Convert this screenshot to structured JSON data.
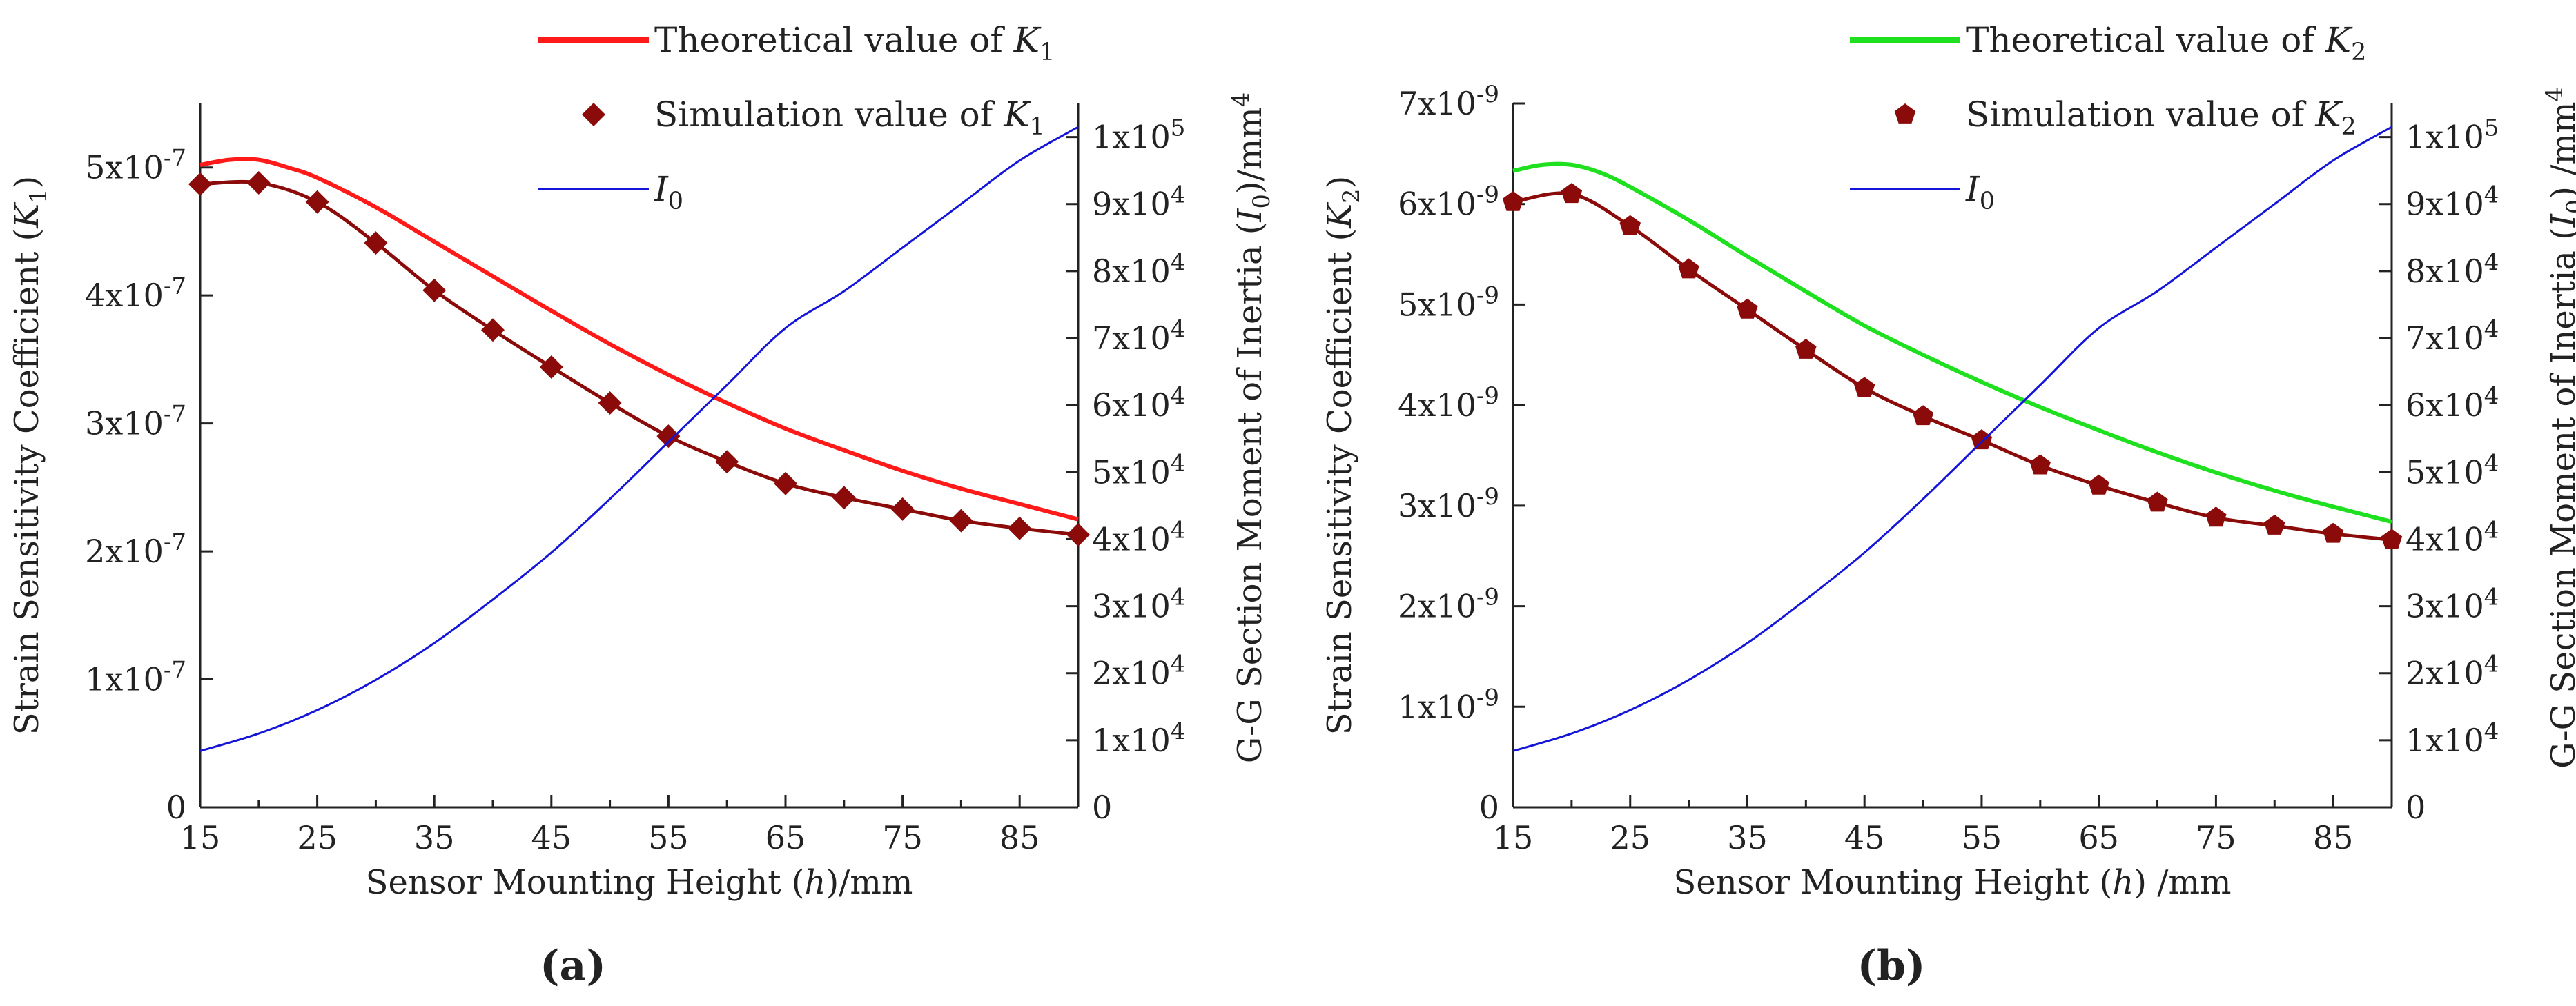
{
  "figure": {
    "panel_labels": [
      "(a)",
      "(b)"
    ]
  },
  "chart_data": [
    {
      "type": "line",
      "panel": "(a)",
      "xlabel": "Sensor Mounting Height (h)/mm",
      "ylabel": "Strain Sensitivity Coefficient (K1)",
      "ylabel_right": "G-G Section Moment of Inertia (I0)/mm4",
      "xlim": [
        15,
        90
      ],
      "ylim": [
        0,
        5.5e-07
      ],
      "ylim_right": [
        0,
        105000
      ],
      "x_ticks": [
        15,
        25,
        35,
        45,
        55,
        65,
        75,
        85
      ],
      "x_tick_labels": [
        "15",
        "25",
        "35",
        "45",
        "55",
        "65",
        "75",
        "85"
      ],
      "y_ticks": [
        0,
        1e-07,
        2e-07,
        3e-07,
        4e-07,
        5e-07
      ],
      "y_tick_labels": [
        "0",
        "1x10-7",
        "2x10-7",
        "3x10-7",
        "4x10-7",
        "5x10-7"
      ],
      "y_right_ticks": [
        0,
        10000,
        20000,
        30000,
        40000,
        50000,
        60000,
        70000,
        80000,
        90000,
        100000
      ],
      "y_right_tick_labels": [
        "0",
        "1x104",
        "2x104",
        "3x104",
        "4x104",
        "5x104",
        "6x104",
        "7x104",
        "8x104",
        "9x104",
        "1x105"
      ],
      "legend_position": "top-right",
      "series": [
        {
          "name": "Theoretical value of K1",
          "axis": "left",
          "style": "line",
          "color": "#ff1a1a",
          "x": [
            15,
            17.5,
            20,
            22.5,
            25,
            30,
            35,
            40,
            45,
            50,
            55,
            60,
            65,
            70,
            75,
            80,
            85,
            90
          ],
          "y": [
            5.02e-07,
            5.06e-07,
            5.06e-07,
            5e-07,
            4.92e-07,
            4.69e-07,
            4.42e-07,
            4.15e-07,
            3.88e-07,
            3.62e-07,
            3.38e-07,
            3.16e-07,
            2.96e-07,
            2.79e-07,
            2.63e-07,
            2.49e-07,
            2.37e-07,
            2.25e-07
          ]
        },
        {
          "name": "Simulation value of K1",
          "axis": "left",
          "style": "line+diamond",
          "color": "#8b0a0a",
          "x": [
            15,
            20,
            25,
            30,
            35,
            40,
            45,
            50,
            55,
            60,
            65,
            70,
            75,
            80,
            85,
            90
          ],
          "y": [
            4.87e-07,
            4.88e-07,
            4.73e-07,
            4.41e-07,
            4.04e-07,
            3.73e-07,
            3.44e-07,
            3.16e-07,
            2.9e-07,
            2.7e-07,
            2.53e-07,
            2.42e-07,
            2.33e-07,
            2.24e-07,
            2.18e-07,
            2.13e-07
          ]
        },
        {
          "name": "I0",
          "axis": "right",
          "style": "thin-line",
          "color": "#1515d8",
          "x": [
            15,
            20,
            25,
            30,
            35,
            40,
            45,
            50,
            55,
            60,
            65,
            70,
            75,
            80,
            85,
            90
          ],
          "y": [
            8400,
            11000,
            14500,
            19000,
            24500,
            31000,
            38000,
            46000,
            54500,
            63000,
            71500,
            77000,
            83500,
            90000,
            96500,
            101500
          ]
        }
      ]
    },
    {
      "type": "line",
      "panel": "(b)",
      "xlabel": "Sensor Mounting Height (h) /mm",
      "ylabel": "Strain Sensitivity Coefficient (K2)",
      "ylabel_right": "G-G Section Moment of Inertia (I0) /mm4",
      "xlim": [
        15,
        90
      ],
      "ylim": [
        0,
        7e-09
      ],
      "ylim_right": [
        0,
        105000
      ],
      "x_ticks": [
        15,
        25,
        35,
        45,
        55,
        65,
        75,
        85
      ],
      "x_tick_labels": [
        "15",
        "25",
        "35",
        "45",
        "55",
        "65",
        "75",
        "85"
      ],
      "y_ticks": [
        0,
        1e-09,
        2e-09,
        3e-09,
        4e-09,
        5e-09,
        6e-09,
        7e-09
      ],
      "y_tick_labels": [
        "0",
        "1x10-9",
        "2x10-9",
        "3x10-9",
        "4x10-9",
        "5x10-9",
        "6x10-9",
        "7x10-9"
      ],
      "y_right_ticks": [
        0,
        10000,
        20000,
        30000,
        40000,
        50000,
        60000,
        70000,
        80000,
        90000,
        100000
      ],
      "y_right_tick_labels": [
        "0",
        "1x104",
        "2x104",
        "3x104",
        "4x104",
        "5x104",
        "6x104",
        "7x104",
        "8x104",
        "9x104",
        "1x105"
      ],
      "legend_position": "top-right",
      "series": [
        {
          "name": "Theoretical value of K2",
          "axis": "left",
          "style": "line",
          "color": "#1ee01e",
          "x": [
            15,
            17.5,
            20,
            22.5,
            25,
            30,
            35,
            40,
            45,
            50,
            55,
            60,
            65,
            70,
            75,
            80,
            85,
            90
          ],
          "y": [
            6.33e-09,
            6.39e-09,
            6.39e-09,
            6.31e-09,
            6.17e-09,
            5.84e-09,
            5.48e-09,
            5.13e-09,
            4.79e-09,
            4.5e-09,
            4.23e-09,
            3.98e-09,
            3.75e-09,
            3.53e-09,
            3.33e-09,
            3.15e-09,
            2.99e-09,
            2.84e-09
          ]
        },
        {
          "name": "Simulation value of K2",
          "axis": "left",
          "style": "line+pentagon",
          "color": "#8b0a0a",
          "x": [
            15,
            20,
            25,
            30,
            35,
            40,
            45,
            50,
            55,
            60,
            65,
            70,
            75,
            80,
            85,
            90
          ],
          "y": [
            6.02e-09,
            6.1e-09,
            5.78e-09,
            5.35e-09,
            4.95e-09,
            4.55e-09,
            4.17e-09,
            3.89e-09,
            3.65e-09,
            3.4e-09,
            3.2e-09,
            3.03e-09,
            2.88e-09,
            2.8e-09,
            2.72e-09,
            2.66e-09
          ]
        },
        {
          "name": "I0",
          "axis": "right",
          "style": "thin-line",
          "color": "#1515d8",
          "x": [
            15,
            20,
            25,
            30,
            35,
            40,
            45,
            50,
            55,
            60,
            65,
            70,
            75,
            80,
            85,
            90
          ],
          "y": [
            8400,
            11000,
            14500,
            19000,
            24500,
            31000,
            38000,
            46000,
            54500,
            63000,
            71500,
            77000,
            83500,
            90000,
            96500,
            101500
          ]
        }
      ]
    }
  ]
}
